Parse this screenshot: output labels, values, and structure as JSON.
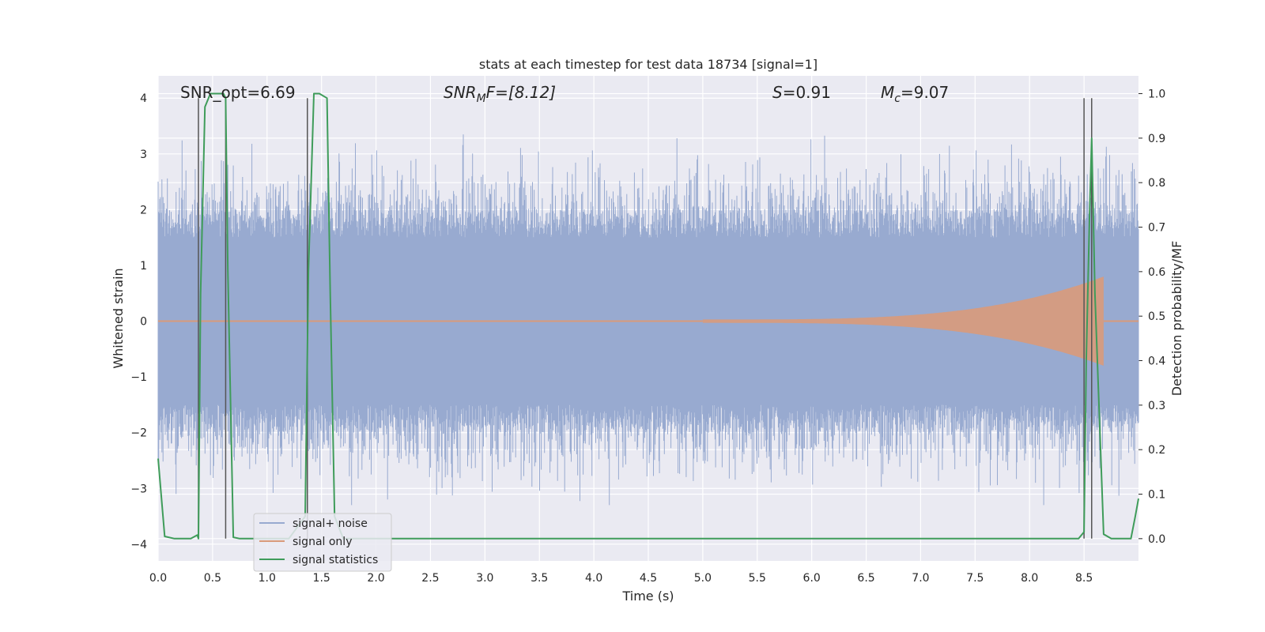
{
  "chart_data": {
    "type": "line",
    "title": "stats at each timestep for test data 18734 [signal=1]",
    "xlabel": "Time (s)",
    "ylabel": "Whitened strain",
    "ylabel_right": "Detection probability/MF",
    "xlim": [
      0.0,
      9.0
    ],
    "ylim": [
      -4.3,
      4.4
    ],
    "ylim_right": [
      -0.05,
      1.04
    ],
    "x_ticks": [
      "0.0",
      "0.5",
      "1.0",
      "1.5",
      "2.0",
      "2.5",
      "3.0",
      "3.5",
      "4.0",
      "4.5",
      "5.0",
      "5.5",
      "6.0",
      "6.5",
      "7.0",
      "7.5",
      "8.0",
      "8.5"
    ],
    "y_ticks": [
      "4",
      "3",
      "2",
      "1",
      "0",
      "−1",
      "−2",
      "−3",
      "−4"
    ],
    "y_ticks_right": [
      "1.0",
      "0.9",
      "0.8",
      "0.7",
      "0.6",
      "0.5",
      "0.4",
      "0.3",
      "0.2",
      "0.1",
      "0.0"
    ],
    "grid": true,
    "legend_position": "lower-left",
    "annotations": {
      "snr_opt": "SNR_opt=6.69",
      "snr_mf_base": "SNR",
      "snr_mf_sub": "M",
      "snr_mf_rest": "F=[8.12]",
      "s_base": "S",
      "s_rest": "=0.91",
      "mc_base": "M",
      "mc_sub": "c",
      "mc_rest": "=9.07"
    },
    "vertical_lines_x": [
      0.37,
      0.62,
      1.37,
      8.5,
      8.57
    ],
    "series": [
      {
        "name": "signal+ noise",
        "color": "#98aad0",
        "description_values": "whitened strain, approx. gaussian noise spanning -3.3 to 4.0",
        "envelope_hi": 2.0,
        "envelope_lo": -2.0,
        "core_hi": 0.85,
        "core_lo": -0.75
      },
      {
        "name": "signal only",
        "color": "#d99a7a",
        "chirp_start_x": 5.0,
        "chirp_end_x": 8.68,
        "chirp_max_amplitude": 0.8
      },
      {
        "name": "signal statistics",
        "color": "#3f9c5a",
        "axis": "right",
        "x": [
          0.0,
          0.06,
          0.15,
          0.3,
          0.36,
          0.37,
          0.39,
          0.43,
          0.48,
          0.6,
          0.62,
          0.64,
          0.69,
          0.75,
          1.0,
          1.2,
          1.35,
          1.38,
          1.43,
          1.48,
          1.55,
          1.58,
          1.62,
          1.7,
          2.0,
          3.0,
          4.0,
          5.0,
          6.0,
          7.0,
          8.0,
          8.45,
          8.5,
          8.52,
          8.55,
          8.57,
          8.6,
          8.68,
          8.75,
          8.85,
          8.93,
          8.97,
          9.0
        ],
        "y": [
          0.18,
          0.005,
          0.0,
          0.0,
          0.008,
          0.0,
          0.55,
          0.97,
          1.0,
          1.0,
          0.99,
          0.6,
          0.003,
          0.0,
          0.0,
          0.0,
          0.05,
          0.6,
          1.0,
          1.0,
          0.99,
          0.55,
          0.05,
          0.0,
          0.0,
          0.0,
          0.0,
          0.0,
          0.0,
          0.0,
          0.0,
          0.0,
          0.015,
          0.4,
          0.72,
          0.9,
          0.55,
          0.01,
          0.0,
          0.0,
          0.0,
          0.05,
          0.09
        ]
      }
    ]
  }
}
